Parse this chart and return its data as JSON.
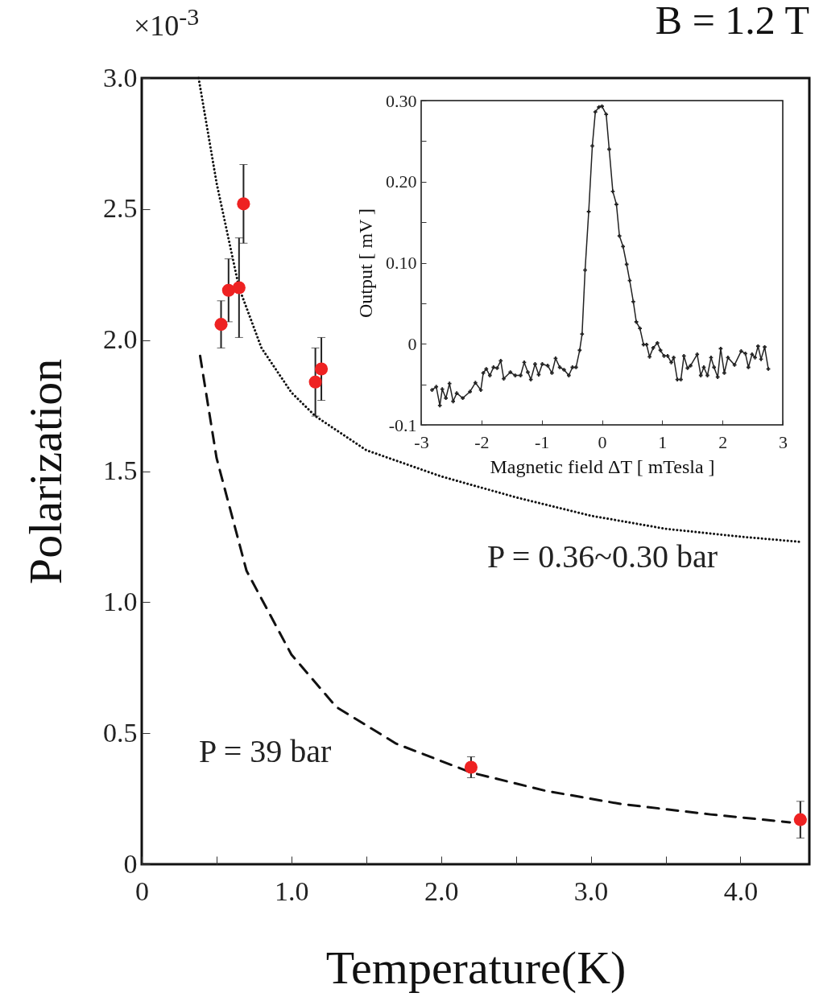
{
  "chart_data": [
    {
      "type": "scatter",
      "title": "B = 1.2 T",
      "xlabel": "Temperature(K)",
      "ylabel": "Polarization",
      "xlim": [
        0,
        4.46
      ],
      "ylim": [
        0,
        3.0
      ],
      "xticks": [
        0,
        {
          "value": 0.5,
          "label": null
        },
        {
          "value": 1,
          "label": "1.0"
        },
        {
          "value": 1.5,
          "label": null
        },
        {
          "value": 2,
          "label": "2.0"
        },
        {
          "value": 2.5,
          "label": null
        },
        {
          "value": 3,
          "label": "3.0"
        },
        {
          "value": 3.5,
          "label": null
        },
        {
          "value": 4,
          "label": "4.0"
        }
      ],
      "yticks": [
        0,
        0.5,
        {
          "value": 1,
          "label": "1.0"
        },
        1.5,
        {
          "value": 2,
          "label": "2.0"
        },
        2.5,
        {
          "value": 3,
          "label": "3.0"
        }
      ],
      "grid": false,
      "annotations": [
        "×10$^{-3}$",
        "P = 0.36~0.30 bar",
        "P = 39 bar"
      ],
      "series": [
        {
          "type": "line",
          "color": "#111111",
          "line_style": "dotted",
          "marker": "none",
          "x": [
            0.38,
            0.5,
            0.65,
            0.8,
            1.0,
            1.16,
            1.5,
            2.0,
            2.5,
            3.0,
            3.5,
            4.0,
            4.4
          ],
          "values": [
            3.0,
            2.6,
            2.2,
            1.97,
            1.8,
            1.71,
            1.58,
            1.48,
            1.4,
            1.33,
            1.28,
            1.25,
            1.23
          ]
        },
        {
          "type": "line",
          "color": "#111111",
          "line_style": "dashed",
          "marker": "none",
          "x": [
            0.39,
            0.5,
            0.7,
            1.0,
            1.3,
            1.7,
            2.2,
            2.7,
            3.2,
            3.8,
            4.33
          ],
          "values": [
            1.94,
            1.55,
            1.12,
            0.8,
            0.6,
            0.46,
            0.35,
            0.28,
            0.23,
            0.19,
            0.16
          ]
        },
        {
          "type": "scatter",
          "color": "#ee2222",
          "marker": "circle",
          "x": [
            0.53,
            0.58,
            0.65,
            0.68,
            1.16,
            1.2,
            2.2,
            4.4
          ],
          "values": [
            2.06,
            2.19,
            2.2,
            2.52,
            1.84,
            1.89,
            0.37,
            0.17
          ],
          "errors": [
            0.09,
            0.12,
            0.19,
            0.15,
            0.13,
            0.12,
            0.04,
            0.07
          ]
        }
      ]
    },
    {
      "type": "line",
      "xlabel": "Magnetic field ΔT [ mTesla ]",
      "ylabel": "Output [ mV ]",
      "xlim": [
        -3,
        3
      ],
      "ylim": [
        -0.1,
        0.3
      ],
      "xticks": [
        -3,
        -2,
        -1,
        0,
        1,
        2,
        3
      ],
      "yticks": [
        -0.1,
        {
          "value": -0.05,
          "label": null
        },
        0,
        {
          "value": 0.05,
          "label": null
        },
        {
          "value": 0.1,
          "label": "0.10"
        },
        {
          "value": 0.15,
          "label": null
        },
        {
          "value": 0.2,
          "label": "0.20"
        },
        {
          "value": 0.25,
          "label": null
        },
        {
          "value": 0.3,
          "label": "0.30"
        }
      ],
      "grid": false,
      "marker": "cross",
      "line_style": "solid",
      "series": [
        {
          "color": "#222222",
          "x": [
            -2.82,
            -2.75,
            -2.69,
            -2.65,
            -2.59,
            -2.53,
            -2.47,
            -2.41,
            -2.31,
            -2.19,
            -2.1,
            -2.01,
            -1.97,
            -1.92,
            -1.86,
            -1.8,
            -1.74,
            -1.68,
            -1.63,
            -1.52,
            -1.44,
            -1.35,
            -1.29,
            -1.23,
            -1.18,
            -1.11,
            -1.05,
            -0.99,
            -0.9,
            -0.83,
            -0.77,
            -0.7,
            -0.63,
            -0.55,
            -0.49,
            -0.43,
            -0.37,
            -0.33,
            -0.28,
            -0.22,
            -0.16,
            -0.11,
            -0.05,
            0.0,
            0.07,
            0.12,
            0.18,
            0.24,
            0.29,
            0.35,
            0.41,
            0.46,
            0.52,
            0.57,
            0.63,
            0.69,
            0.74,
            0.79,
            0.85,
            0.92,
            0.97,
            1.03,
            1.09,
            1.15,
            1.19,
            1.25,
            1.31,
            1.36,
            1.42,
            1.47,
            1.58,
            1.64,
            1.69,
            1.75,
            1.81,
            1.86,
            1.92,
            1.97,
            2.03,
            2.09,
            2.2,
            2.31,
            2.38,
            2.43,
            2.49,
            2.54,
            2.59,
            2.64,
            2.7,
            2.76
          ],
          "values": [
            -0.057,
            -0.053,
            -0.076,
            -0.056,
            -0.067,
            -0.049,
            -0.071,
            -0.061,
            -0.067,
            -0.059,
            -0.048,
            -0.057,
            -0.036,
            -0.031,
            -0.039,
            -0.029,
            -0.03,
            -0.021,
            -0.043,
            -0.035,
            -0.039,
            -0.039,
            -0.023,
            -0.035,
            -0.044,
            -0.025,
            -0.038,
            -0.025,
            -0.027,
            -0.036,
            -0.018,
            -0.029,
            -0.032,
            -0.039,
            -0.029,
            -0.029,
            -0.008,
            0.012,
            0.091,
            0.163,
            0.244,
            0.286,
            0.292,
            0.293,
            0.283,
            0.24,
            0.188,
            0.172,
            0.133,
            0.12,
            0.098,
            0.078,
            0.052,
            0.027,
            0.019,
            -0.001,
            -0.001,
            -0.016,
            -0.005,
            0.001,
            -0.008,
            -0.015,
            -0.015,
            -0.023,
            -0.017,
            -0.044,
            -0.044,
            -0.015,
            -0.03,
            -0.027,
            -0.013,
            -0.039,
            -0.029,
            -0.039,
            -0.017,
            -0.029,
            -0.041,
            -0.006,
            -0.036,
            -0.017,
            -0.026,
            -0.009,
            -0.012,
            -0.029,
            -0.013,
            -0.017,
            -0.003,
            -0.019,
            -0.004,
            -0.031
          ]
        }
      ]
    }
  ]
}
